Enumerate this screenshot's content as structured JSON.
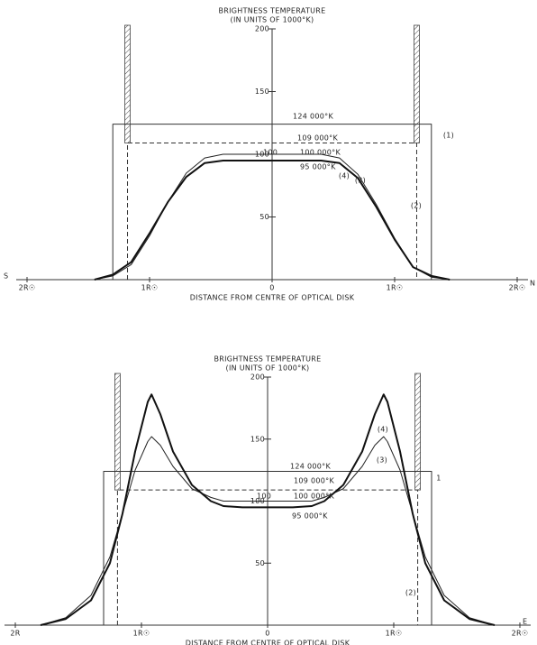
{
  "chart_data": [
    {
      "type": "line",
      "title": "BRIGHTNESS TEMPERATURE",
      "subtitle": "(IN UNITS OF 1000°K)",
      "x_label": "DISTANCE FROM CENTRE OF OPTICAL DISK",
      "xlim": [
        -2,
        2
      ],
      "ylim": [
        0,
        200
      ],
      "xticks": [
        {
          "value": -2,
          "label": "2R☉"
        },
        {
          "value": -1,
          "label": "1R☉"
        },
        0,
        {
          "value": 1,
          "label": "1R☉"
        },
        {
          "value": 2,
          "label": "2R☉"
        }
      ],
      "yticks": [
        50,
        100,
        150,
        200
      ],
      "series": [
        {
          "name": "(1)",
          "color": "#333",
          "width": 1,
          "dash": false,
          "x": [
            -1.3,
            -1.3,
            1.3,
            1.3
          ],
          "values": [
            0,
            124,
            124,
            0
          ]
        },
        {
          "name": "(2)",
          "color": "#333",
          "width": 1,
          "dash": true,
          "x": [
            -1.18,
            -1.18,
            1.18,
            1.18
          ],
          "values": [
            0,
            109,
            109,
            0
          ]
        },
        {
          "name": "(3)",
          "color": "#222",
          "width": 1,
          "dash": false,
          "x": [
            -1.45,
            -1.3,
            -1.15,
            -1.0,
            -0.85,
            -0.7,
            -0.55,
            -0.4,
            0,
            0.4,
            0.55,
            0.7,
            0.85,
            1.0,
            1.15,
            1.3,
            1.45
          ],
          "values": [
            0,
            3,
            12,
            35,
            62,
            85,
            97,
            100,
            100,
            100,
            97,
            84,
            60,
            33,
            10,
            2,
            0
          ]
        },
        {
          "name": "(4)",
          "color": "#111",
          "width": 2,
          "dash": false,
          "x": [
            -1.45,
            -1.3,
            -1.15,
            -1.0,
            -0.85,
            -0.7,
            -0.55,
            -0.4,
            0,
            0.4,
            0.55,
            0.7,
            0.85,
            1.0,
            1.15,
            1.3,
            1.45
          ],
          "values": [
            0,
            4,
            14,
            37,
            62,
            82,
            93,
            95,
            95,
            95,
            93,
            81,
            58,
            32,
            10,
            3,
            0
          ]
        }
      ],
      "annotations": [
        "124 000°K",
        "109 000°K",
        "100",
        "100 000°K",
        "95 000°K",
        "S",
        "N"
      ]
    },
    {
      "type": "line",
      "title": "BRIGHTNESS TEMPERATURE",
      "subtitle": "(IN UNITS OF 1000°K)",
      "x_label": "DISTANCE FROM CENTRE OF OPTICAL DISK",
      "xlim": [
        -2,
        2
      ],
      "ylim": [
        0,
        200
      ],
      "xticks": [
        {
          "value": -2,
          "label": "2R"
        },
        {
          "value": -1,
          "label": "1R☉"
        },
        0,
        {
          "value": 1,
          "label": "1R☉"
        },
        {
          "value": 2,
          "label": "2R☉"
        }
      ],
      "yticks": [
        50,
        100,
        150,
        200
      ],
      "series": [
        {
          "name": "1",
          "color": "#333",
          "width": 1,
          "dash": false,
          "x": [
            -1.3,
            -1.3,
            1.3,
            1.3
          ],
          "values": [
            0,
            124,
            124,
            0
          ]
        },
        {
          "name": "(2)",
          "color": "#333",
          "width": 1,
          "dash": true,
          "x": [
            -1.19,
            -1.19,
            1.19,
            1.19
          ],
          "values": [
            0,
            109,
            109,
            0
          ]
        },
        {
          "name": "(3)",
          "color": "#222",
          "width": 1,
          "dash": false,
          "x": [
            -1.8,
            -1.6,
            -1.4,
            -1.25,
            -1.15,
            -1.05,
            -0.95,
            -0.92,
            -0.85,
            -0.75,
            -0.6,
            -0.45,
            -0.35,
            0,
            0.35,
            0.45,
            0.6,
            0.75,
            0.85,
            0.92,
            0.95,
            1.05,
            1.15,
            1.25,
            1.4,
            1.6,
            1.8
          ],
          "values": [
            0,
            6,
            24,
            55,
            90,
            125,
            148,
            152,
            145,
            128,
            110,
            103,
            100,
            100,
            100,
            103,
            110,
            128,
            145,
            152,
            148,
            125,
            90,
            55,
            24,
            6,
            0
          ]
        },
        {
          "name": "(4)",
          "color": "#111",
          "width": 2,
          "dash": false,
          "x": [
            -1.8,
            -1.6,
            -1.4,
            -1.25,
            -1.15,
            -1.05,
            -0.95,
            -0.92,
            -0.85,
            -0.75,
            -0.6,
            -0.45,
            -0.35,
            -0.2,
            0,
            0.2,
            0.35,
            0.45,
            0.6,
            0.75,
            0.85,
            0.92,
            0.95,
            1.05,
            1.15,
            1.25,
            1.4,
            1.6,
            1.8
          ],
          "values": [
            0,
            5,
            20,
            50,
            90,
            140,
            180,
            186,
            170,
            140,
            113,
            100,
            96,
            95,
            95,
            95,
            96,
            100,
            113,
            140,
            170,
            186,
            180,
            140,
            90,
            50,
            20,
            5,
            0
          ]
        }
      ],
      "annotations": [
        "124 000°K",
        "109 000°K",
        "100",
        "100 000°K",
        "95 000°K",
        "E"
      ]
    }
  ]
}
